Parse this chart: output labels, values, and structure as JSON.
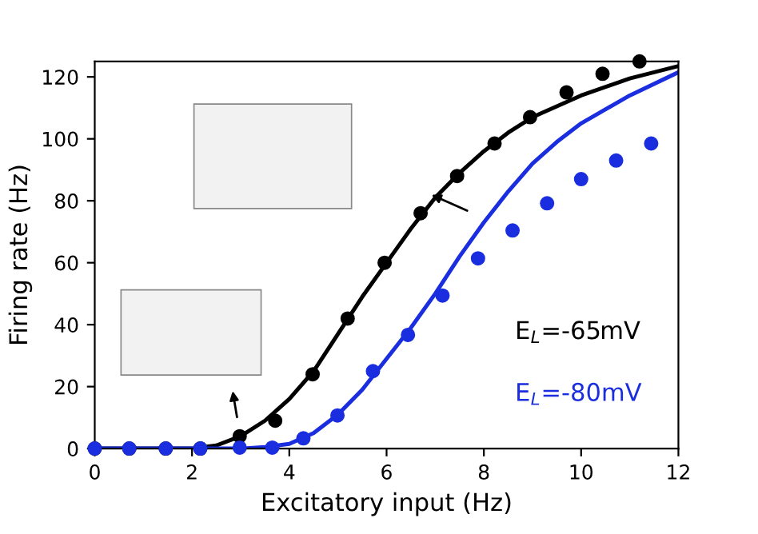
{
  "chart_data": {
    "type": "scatter",
    "xlabel": "Excitatory input (Hz)",
    "ylabel": "Firing rate (Hz)",
    "xlim": [
      0,
      12
    ],
    "ylim": [
      0,
      125
    ],
    "xticks": [
      0,
      2,
      4,
      6,
      8,
      10,
      12
    ],
    "yticks": [
      0,
      20,
      40,
      60,
      80,
      100,
      120
    ],
    "grid": false,
    "legend": "bottom right",
    "line_style": "solid",
    "series": [
      {
        "name": "E$_{L}$=-65mV",
        "color": "#000000",
        "marker": "circle",
        "x": [
          0,
          0.71,
          1.46,
          2.17,
          2.98,
          3.71,
          4.48,
          5.2,
          5.96,
          6.7,
          7.45,
          8.22,
          8.95,
          9.7,
          10.44,
          11.2
        ],
        "values": [
          0,
          0,
          0,
          0,
          4,
          9,
          24,
          42,
          60,
          76,
          88,
          98.5,
          107,
          115,
          121,
          125
        ]
      },
      {
        "name": "E$_{L}$=-80mV",
        "color": "#1a2ee0",
        "marker": "circle",
        "x": [
          0,
          0.71,
          1.46,
          2.17,
          2.98,
          3.65,
          4.29,
          4.99,
          5.72,
          6.44,
          7.15,
          7.88,
          8.59,
          9.3,
          10.0,
          10.72,
          11.44
        ],
        "values": [
          0,
          0,
          0,
          0,
          0.3,
          0.3,
          3.3,
          10.7,
          25,
          36.7,
          49.4,
          61.4,
          70.4,
          79.2,
          87,
          93,
          98.5
        ]
      },
      {
        "color": "#000000",
        "type": "line",
        "marker": "none",
        "x": [
          0,
          1,
          2,
          2.5,
          3,
          3.5,
          4,
          4.5,
          5,
          5.5,
          6,
          6.5,
          7,
          7.5,
          8,
          8.5,
          9,
          10,
          11,
          12
        ],
        "values": [
          0,
          0,
          0,
          1,
          4,
          9,
          16,
          25,
          37,
          49,
          60,
          71,
          81,
          89,
          96,
          102,
          107,
          114,
          119.5,
          123.5
        ]
      },
      {
        "color": "#1a2ee0",
        "type": "line",
        "marker": "none",
        "x": [
          0,
          1,
          2,
          3,
          3.5,
          4,
          4.5,
          5,
          5.5,
          6,
          6.5,
          7,
          7.5,
          8,
          8.5,
          9,
          9.5,
          10,
          11,
          12
        ],
        "values": [
          0,
          0,
          0,
          0,
          0.5,
          1.5,
          5,
          11,
          19,
          29,
          39,
          50,
          62,
          73,
          83,
          92,
          99,
          105,
          114,
          121.5
        ]
      }
    ]
  }
}
